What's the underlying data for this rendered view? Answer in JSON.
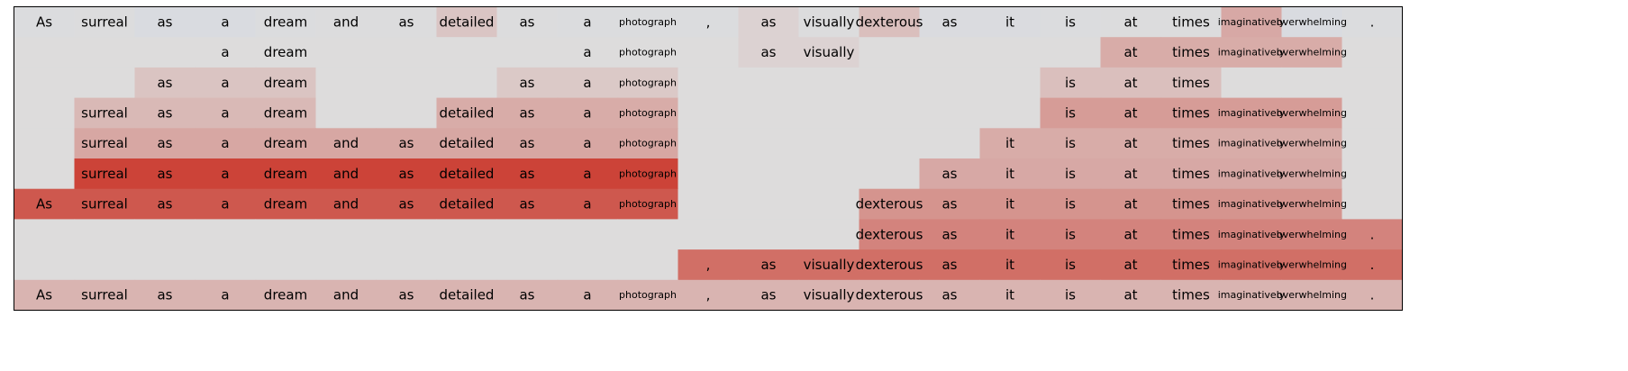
{
  "chart_data": {
    "type": "heatmap",
    "title": "",
    "xlabel": "",
    "ylabel": "",
    "colormap": "coolwarm",
    "color_low": "#c9d7f0",
    "color_mid": "#dddcdc",
    "color_high": "#cb3b2f",
    "empty_color": "#dddcdc",
    "tokens": [
      "As",
      "surreal",
      "as",
      "a",
      "dream",
      "and",
      "as",
      "detailed",
      "as",
      "a",
      "photograph",
      ",",
      "as",
      "visually",
      "dexterous",
      "as",
      "it",
      "is",
      "at",
      "times",
      "imaginatively",
      "overwhelming",
      "."
    ],
    "small_tokens": [
      "photograph",
      "imaginatively",
      "overwhelming"
    ],
    "rows": [
      {
        "shown": [
          true,
          true,
          true,
          true,
          true,
          true,
          true,
          true,
          true,
          true,
          true,
          true,
          true,
          true,
          true,
          true,
          true,
          true,
          true,
          true,
          true,
          true,
          true
        ],
        "values": [
          -0.1,
          -0.06,
          -0.18,
          -0.22,
          -0.08,
          -0.04,
          -0.05,
          0.14,
          -0.06,
          -0.1,
          -0.1,
          -0.1,
          0.06,
          -0.06,
          0.18,
          -0.14,
          -0.16,
          -0.08,
          -0.06,
          -0.06,
          0.32,
          -0.2,
          -0.1
        ]
      },
      {
        "shown": [
          false,
          false,
          false,
          true,
          true,
          false,
          false,
          false,
          false,
          true,
          true,
          false,
          true,
          true,
          false,
          false,
          false,
          false,
          true,
          true,
          true,
          true,
          false
        ],
        "values": [
          0,
          0,
          0,
          0.0,
          0.0,
          0,
          0,
          0,
          0,
          0.0,
          0.0,
          0,
          0.06,
          0.06,
          0,
          0,
          0,
          0,
          0.3,
          0.3,
          0.3,
          0.3,
          0
        ]
      },
      {
        "shown": [
          false,
          false,
          true,
          true,
          true,
          false,
          false,
          false,
          true,
          true,
          true,
          false,
          false,
          false,
          false,
          false,
          false,
          true,
          true,
          true,
          false,
          false,
          false
        ],
        "values": [
          0,
          0,
          0.15,
          0.15,
          0.15,
          0,
          0,
          0,
          0.12,
          0.12,
          0.12,
          0,
          0,
          0,
          0,
          0,
          0,
          0.18,
          0.18,
          0.18,
          0,
          0,
          0
        ]
      },
      {
        "shown": [
          false,
          true,
          true,
          true,
          true,
          false,
          false,
          true,
          true,
          true,
          true,
          false,
          false,
          false,
          false,
          false,
          false,
          true,
          true,
          true,
          true,
          true,
          false
        ],
        "values": [
          0,
          0.22,
          0.22,
          0.22,
          0.22,
          0,
          0,
          0.3,
          0.3,
          0.3,
          0.3,
          0,
          0,
          0,
          0,
          0,
          0,
          0.4,
          0.4,
          0.4,
          0.4,
          0.4,
          0
        ]
      },
      {
        "shown": [
          false,
          true,
          true,
          true,
          true,
          true,
          true,
          true,
          true,
          true,
          true,
          false,
          false,
          false,
          false,
          false,
          true,
          true,
          true,
          true,
          true,
          true,
          false
        ],
        "values": [
          0,
          0.33,
          0.33,
          0.33,
          0.33,
          0.33,
          0.33,
          0.33,
          0.33,
          0.33,
          0.33,
          0,
          0,
          0,
          0,
          0,
          0.3,
          0.3,
          0.3,
          0.3,
          0.3,
          0.3,
          0
        ]
      },
      {
        "shown": [
          false,
          true,
          true,
          true,
          true,
          true,
          true,
          true,
          true,
          true,
          true,
          false,
          false,
          false,
          false,
          true,
          true,
          true,
          true,
          true,
          true,
          true,
          false
        ],
        "values": [
          0,
          0.95,
          0.95,
          0.95,
          0.95,
          0.95,
          0.95,
          0.95,
          0.95,
          0.95,
          0.95,
          0,
          0,
          0,
          0,
          0.32,
          0.32,
          0.32,
          0.32,
          0.32,
          0.32,
          0.32,
          0
        ]
      },
      {
        "shown": [
          true,
          true,
          true,
          true,
          true,
          true,
          true,
          true,
          true,
          true,
          true,
          false,
          false,
          false,
          true,
          true,
          true,
          true,
          true,
          true,
          true,
          true,
          false
        ],
        "values": [
          0.82,
          0.82,
          0.82,
          0.82,
          0.82,
          0.82,
          0.82,
          0.82,
          0.82,
          0.82,
          0.82,
          0,
          0,
          0,
          0.45,
          0.45,
          0.45,
          0.45,
          0.45,
          0.45,
          0.45,
          0.45,
          0
        ]
      },
      {
        "shown": [
          false,
          false,
          false,
          false,
          false,
          false,
          false,
          false,
          false,
          false,
          false,
          false,
          false,
          false,
          true,
          true,
          true,
          true,
          true,
          true,
          true,
          true,
          true
        ],
        "values": [
          0,
          0,
          0,
          0,
          0,
          0,
          0,
          0,
          0,
          0,
          0,
          0,
          0,
          0,
          0.55,
          0.55,
          0.55,
          0.55,
          0.55,
          0.55,
          0.55,
          0.55,
          0.55
        ]
      },
      {
        "shown": [
          false,
          false,
          false,
          false,
          false,
          false,
          false,
          false,
          false,
          false,
          false,
          true,
          true,
          true,
          true,
          true,
          true,
          true,
          true,
          true,
          true,
          true,
          true
        ],
        "values": [
          0,
          0,
          0,
          0,
          0,
          0,
          0,
          0,
          0,
          0,
          0,
          0.68,
          0.68,
          0.68,
          0.68,
          0.68,
          0.68,
          0.68,
          0.68,
          0.68,
          0.68,
          0.68,
          0.68
        ]
      },
      {
        "shown": [
          true,
          true,
          true,
          true,
          true,
          true,
          true,
          true,
          true,
          true,
          true,
          true,
          true,
          true,
          true,
          true,
          true,
          true,
          true,
          true,
          true,
          true,
          true
        ],
        "values": [
          0.25,
          0.25,
          0.25,
          0.25,
          0.25,
          0.25,
          0.25,
          0.25,
          0.25,
          0.25,
          0.25,
          0.25,
          0.25,
          0.25,
          0.25,
          0.25,
          0.25,
          0.25,
          0.25,
          0.25,
          0.25,
          0.25,
          0.25
        ]
      }
    ]
  }
}
